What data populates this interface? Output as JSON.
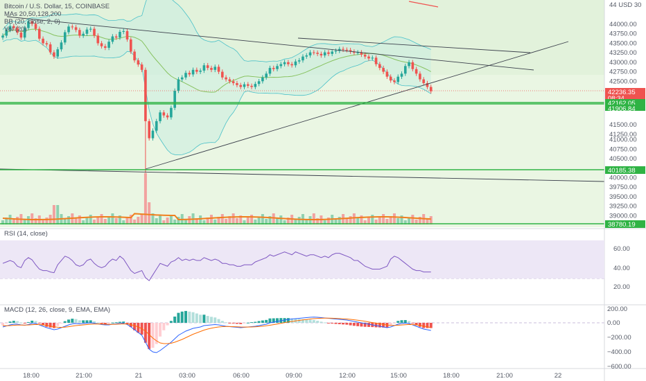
{
  "colors": {
    "up": "#26a69a",
    "down": "#ef5350",
    "level_line": "#2fb344",
    "trend_line": "#3a3f4b",
    "bb_fill": "#c8ece0",
    "bb_band": "#48c0c8",
    "ma_green": "#87c25f",
    "vol_ma": "#f07f1d",
    "rsi_line": "#7e57c2",
    "rsi_band": "#ede7f6",
    "macd_line": "#2962ff",
    "signal_line": "#ff6d00",
    "price_tag_red": "#ef5350",
    "price_tag_green": "#2fb344"
  },
  "legend": {
    "title_line": "Bitcoin / U.S. Dollar, 15, COINBASE",
    "mas_line": "MAs 20,50,128,200",
    "bb_line": "BB (20, close, 2, 0)",
    "vol_line": "Vol (20)"
  },
  "price_axis": {
    "ticks": [
      "44000.00",
      "43750.00",
      "43500.00",
      "43250.00",
      "43000.00",
      "42750.00",
      "42500.00",
      "41500.00",
      "41250.00",
      "41000.00",
      "40750.00",
      "40500.00",
      "40000.00",
      "39750.00",
      "39500.00",
      "39250.00",
      "39000.00",
      "38750.00"
    ],
    "usd_label": "44 USD 30"
  },
  "price_tags": {
    "last_price": "42236.35",
    "countdown": "08:34",
    "level1": "42162.05",
    "level2": "41906.84",
    "level3": "40185.38",
    "level4": "38780.19"
  },
  "rsi": {
    "label": "RSI (14, close)",
    "ticks": [
      "60.00",
      "40.00",
      "20.00"
    ]
  },
  "macd": {
    "label": "MACD (12, 26, close, 9, EMA, EMA)",
    "ticks": [
      "200.00",
      "0.00",
      "−200.00",
      "−400.00",
      "−600.00"
    ]
  },
  "time_axis": {
    "labels": [
      "18:00",
      "21:00",
      "21",
      "03:00",
      "06:00",
      "09:00",
      "12:00",
      "15:00",
      "18:00",
      "21:00",
      "22"
    ]
  },
  "chart_data": {
    "type": "candlestick",
    "symbol": "Bitcoin / U.S. Dollar",
    "interval": "15",
    "exchange": "COINBASE",
    "close_series": [
      43700,
      43850,
      43950,
      43900,
      43780,
      43650,
      43900,
      44080,
      44010,
      43880,
      43620,
      43500,
      43470,
      43260,
      43150,
      43340,
      43520,
      43790,
      43940,
      43920,
      43850,
      43700,
      43750,
      43860,
      43880,
      43700,
      43500,
      43420,
      43380,
      43540,
      43680,
      43650,
      43800,
      43820,
      43600,
      43280,
      43050,
      42940,
      42800,
      41450,
      41000,
      41200,
      41450,
      41680,
      41600,
      41550,
      41800,
      42250,
      42550,
      42600,
      42720,
      42680,
      42800,
      42750,
      42780,
      42920,
      42850,
      42800,
      42880,
      42750,
      42600,
      42550,
      42500,
      42450,
      42400,
      42350,
      42420,
      42380,
      42350,
      42430,
      42500,
      42600,
      42700,
      42850,
      42820,
      42900,
      42950,
      43000,
      42950,
      42920,
      43020,
      43050,
      43150,
      43180,
      43260,
      43250,
      43220,
      43180,
      43260,
      43220,
      43280,
      43300,
      43350,
      43330,
      43320,
      43280,
      43250,
      43260,
      43200,
      43150,
      43100,
      43120,
      42950,
      42850,
      42750,
      42620,
      42520,
      42480,
      42620,
      42700,
      42900,
      43000,
      42820,
      42700,
      42550,
      42450,
      42350,
      42236
    ],
    "rsi_values": [
      48,
      50,
      52,
      50,
      44,
      42,
      52,
      56,
      53,
      46,
      40,
      38,
      38,
      36,
      35,
      46,
      52,
      58,
      56,
      52,
      46,
      44,
      46,
      52,
      54,
      48,
      44,
      42,
      44,
      50,
      54,
      52,
      58,
      54,
      46,
      38,
      34,
      36,
      38,
      28,
      24,
      32,
      40,
      48,
      46,
      44,
      50,
      52,
      56,
      52,
      54,
      52,
      54,
      52,
      52,
      56,
      54,
      52,
      54,
      52,
      48,
      48,
      46,
      46,
      44,
      44,
      46,
      46,
      46,
      50,
      52,
      54,
      56,
      60,
      58,
      60,
      62,
      64,
      62,
      60,
      64,
      62,
      60,
      58,
      60,
      60,
      58,
      56,
      58,
      56,
      60,
      62,
      62,
      60,
      58,
      56,
      52,
      52,
      48,
      44,
      42,
      40,
      40,
      40,
      42,
      44,
      54,
      58,
      56,
      52,
      48,
      44,
      40,
      38,
      38,
      36,
      36,
      36
    ],
    "macd_values": [
      -60,
      -45,
      -30,
      -20,
      -20,
      -30,
      -35,
      -25,
      -10,
      -10,
      -30,
      -50,
      -70,
      -85,
      -100,
      -90,
      -70,
      -50,
      -30,
      -15,
      -10,
      -15,
      -10,
      -5,
      0,
      -5,
      -15,
      -25,
      -30,
      -30,
      -20,
      -15,
      -10,
      -5,
      -25,
      -60,
      -100,
      -140,
      -180,
      -280,
      -380,
      -420,
      -430,
      -400,
      -360,
      -320,
      -280,
      -230,
      -180,
      -150,
      -120,
      -100,
      -80,
      -70,
      -60,
      -40,
      -35,
      -30,
      -25,
      -30,
      -40,
      -50,
      -55,
      -60,
      -65,
      -70,
      -65,
      -60,
      -55,
      -50,
      -40,
      -30,
      -20,
      0,
      10,
      20,
      30,
      40,
      50,
      55,
      60,
      65,
      70,
      75,
      80,
      82,
      80,
      75,
      70,
      65,
      60,
      55,
      50,
      45,
      40,
      30,
      20,
      10,
      0,
      -10,
      -20,
      -30,
      -40,
      -50,
      -60,
      -70,
      -60,
      -40,
      -20,
      -10,
      -5,
      -10,
      -30,
      -50,
      -70,
      -90,
      -100,
      -110
    ],
    "signal_values": [
      -40,
      -42,
      -40,
      -36,
      -33,
      -32,
      -33,
      -31,
      -27,
      -24,
      -25,
      -30,
      -38,
      -47,
      -58,
      -64,
      -66,
      -63,
      -56,
      -48,
      -40,
      -35,
      -30,
      -25,
      -20,
      -17,
      -16,
      -18,
      -20,
      -22,
      -22,
      -20,
      -18,
      -15,
      -17,
      -26,
      -40,
      -60,
      -85,
      -120,
      -170,
      -220,
      -260,
      -290,
      -300,
      -300,
      -295,
      -280,
      -260,
      -240,
      -215,
      -190,
      -165,
      -145,
      -125,
      -105,
      -90,
      -78,
      -68,
      -60,
      -55,
      -54,
      -54,
      -55,
      -57,
      -60,
      -61,
      -61,
      -60,
      -58,
      -54,
      -49,
      -43,
      -35,
      -26,
      -17,
      -8,
      2,
      12,
      20,
      28,
      35,
      42,
      48,
      55,
      60,
      64,
      66,
      67,
      67,
      66,
      64,
      61,
      58,
      55,
      50,
      44,
      37,
      30,
      22,
      13,
      4,
      -4,
      -13,
      -22,
      -31,
      -37,
      -38,
      -35,
      -31,
      -27,
      -24,
      -25,
      -30,
      -38,
      -48,
      -58,
      -68
    ],
    "levels": [
      42162.05,
      41906.84,
      40185.38,
      38780.19
    ],
    "last_price": 42236.35,
    "y_range_price": [
      38700,
      44350
    ],
    "rsi_range": [
      10,
      80
    ],
    "macd_range": [
      -700,
      230
    ]
  }
}
